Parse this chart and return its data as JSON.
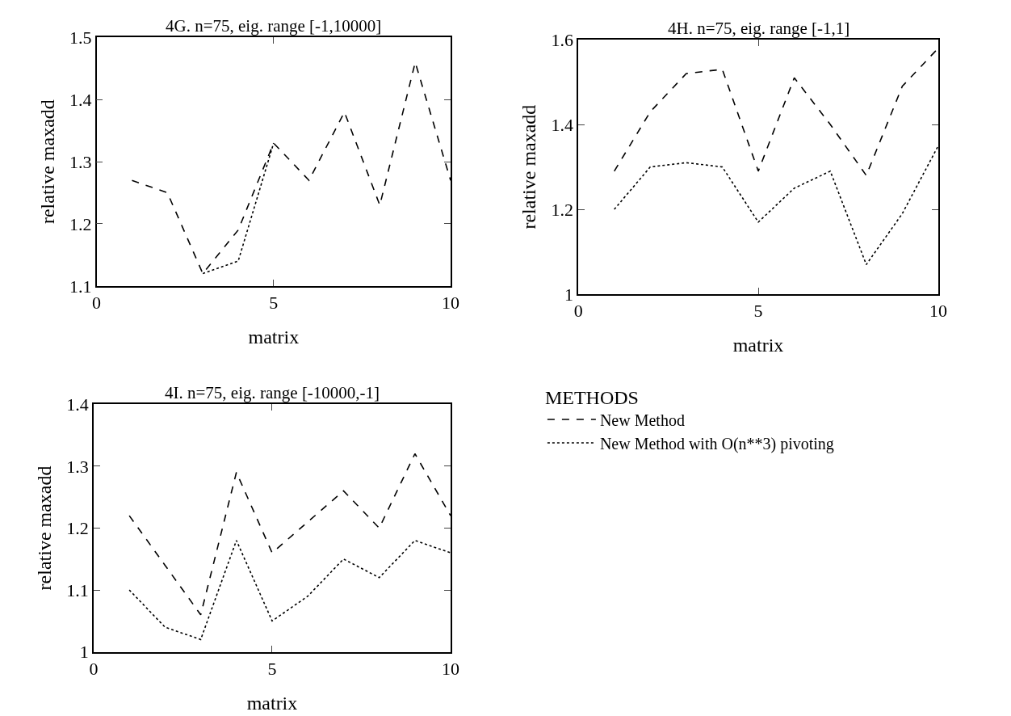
{
  "chart_data": [
    {
      "type": "line",
      "title": "4G. n=75, eig. range [-1,10000]",
      "xlabel": "matrix",
      "ylabel": "relative maxadd",
      "x": [
        1,
        2,
        3,
        4,
        5,
        6,
        7,
        8,
        9,
        10
      ],
      "xlim": [
        0,
        10
      ],
      "xticks": [
        0,
        5,
        10
      ],
      "ylim": [
        1.1,
        1.5
      ],
      "yticks": [
        1.1,
        1.2,
        1.3,
        1.4,
        1.5
      ],
      "grid": false,
      "marker": "none",
      "series": [
        {
          "color": "#000000",
          "line_style": "dashed",
          "values": [
            1.27,
            1.25,
            1.12,
            1.19,
            1.33,
            1.27,
            1.38,
            1.23,
            1.46,
            1.27
          ]
        },
        {
          "color": "#000000",
          "line_style": "dotted",
          "values": [
            null,
            null,
            1.12,
            1.14,
            1.33,
            null,
            null,
            null,
            null,
            null
          ]
        }
      ]
    },
    {
      "type": "line",
      "title": "4H. n=75, eig. range [-1,1]",
      "xlabel": "matrix",
      "ylabel": "relative maxadd",
      "x": [
        1,
        2,
        3,
        4,
        5,
        6,
        7,
        8,
        9,
        10
      ],
      "xlim": [
        0,
        10
      ],
      "xticks": [
        0,
        5,
        10
      ],
      "ylim": [
        1,
        1.6
      ],
      "yticks": [
        1,
        1.2,
        1.4,
        1.6
      ],
      "grid": false,
      "marker": "none",
      "series": [
        {
          "color": "#000000",
          "line_style": "dashed",
          "values": [
            1.29,
            1.43,
            1.52,
            1.53,
            1.29,
            1.51,
            1.4,
            1.28,
            1.49,
            1.58
          ]
        },
        {
          "color": "#000000",
          "line_style": "dotted",
          "values": [
            1.2,
            1.3,
            1.31,
            1.3,
            1.17,
            1.25,
            1.29,
            1.07,
            1.19,
            1.35
          ]
        }
      ]
    },
    {
      "type": "line",
      "title": "4I. n=75, eig. range [-10000,-1]",
      "xlabel": "matrix",
      "ylabel": "relative maxadd",
      "x": [
        1,
        2,
        3,
        4,
        5,
        6,
        7,
        8,
        9,
        10
      ],
      "xlim": [
        0,
        10
      ],
      "xticks": [
        0,
        5,
        10
      ],
      "ylim": [
        1,
        1.4
      ],
      "yticks": [
        1,
        1.1,
        1.2,
        1.3,
        1.4
      ],
      "grid": false,
      "marker": "none",
      "legend": "right",
      "legend_title": "METHODS",
      "series": [
        {
          "name": "New Method",
          "color": "#000000",
          "line_style": "dashed",
          "values": [
            1.22,
            1.14,
            1.06,
            1.29,
            1.16,
            1.21,
            1.26,
            1.2,
            1.32,
            1.22
          ]
        },
        {
          "name": "New Method with O(n**3) pivoting",
          "color": "#000000",
          "line_style": "dotted",
          "values": [
            1.1,
            1.04,
            1.02,
            1.18,
            1.05,
            1.09,
            1.15,
            1.12,
            1.18,
            1.16
          ]
        }
      ]
    }
  ]
}
